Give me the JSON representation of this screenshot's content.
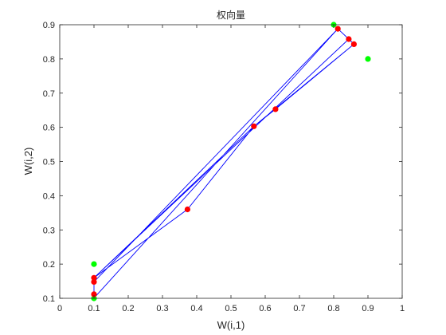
{
  "chart_data": {
    "type": "scatter",
    "title": "权向量",
    "xlabel": "W(i,1)",
    "ylabel": "W(i,2)",
    "xlim": [
      0,
      1
    ],
    "ylim": [
      0.1,
      0.9
    ],
    "xticks": [
      "0",
      "0.1",
      "0.2",
      "0.3",
      "0.4",
      "0.5",
      "0.6",
      "0.7",
      "0.8",
      "0.9",
      "1"
    ],
    "yticks": [
      "0.1",
      "0.2",
      "0.3",
      "0.4",
      "0.5",
      "0.6",
      "0.7",
      "0.8",
      "0.9"
    ],
    "grid": false,
    "colors": {
      "line": "#0000ff",
      "weight_points": "#ff0000",
      "sample_points": "#00ff00",
      "axes": "#262626"
    },
    "series": [
      {
        "type": "line",
        "points": [
          [
            0.812,
            0.888
          ],
          [
            0.102,
            0.103
          ],
          [
            0.1,
            0.112
          ],
          [
            0.1,
            0.148
          ],
          [
            0.1,
            0.16
          ],
          [
            0.373,
            0.36
          ],
          [
            0.567,
            0.603
          ],
          [
            0.63,
            0.653
          ],
          [
            0.859,
            0.843
          ],
          [
            0.844,
            0.858
          ],
          [
            0.812,
            0.888
          ],
          [
            0.1,
            0.148
          ],
          [
            0.1,
            0.16
          ],
          [
            0.567,
            0.603
          ],
          [
            0.859,
            0.843
          ],
          [
            0.844,
            0.858
          ],
          [
            0.1,
            0.16
          ]
        ]
      },
      {
        "type": "scatter",
        "color_key": "sample_points",
        "points": [
          [
            0.1,
            0.1
          ],
          [
            0.1,
            0.2
          ],
          [
            0.8,
            0.9
          ],
          [
            0.9,
            0.8
          ]
        ]
      },
      {
        "type": "scatter",
        "color_key": "weight_points",
        "points": [
          [
            0.1,
            0.112
          ],
          [
            0.1,
            0.148
          ],
          [
            0.1,
            0.16
          ],
          [
            0.373,
            0.36
          ],
          [
            0.567,
            0.603
          ],
          [
            0.63,
            0.653
          ],
          [
            0.812,
            0.888
          ],
          [
            0.844,
            0.858
          ],
          [
            0.859,
            0.843
          ]
        ]
      }
    ]
  }
}
